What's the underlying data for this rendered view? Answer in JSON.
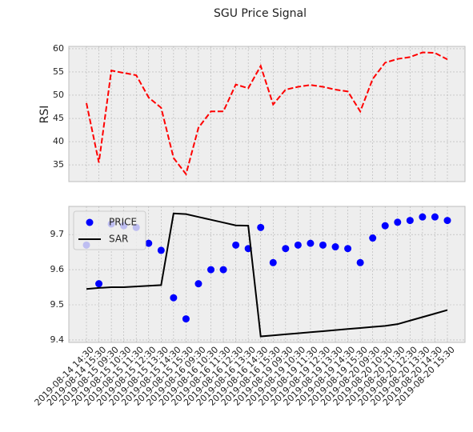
{
  "chart_data": [
    {
      "type": "line",
      "title": "SGU Price Signal",
      "ylabel": "RSI",
      "series": [
        {
          "color": "#ff0000",
          "linestyle": "dashed",
          "values": [
            48.3,
            35.5,
            55.3,
            54.8,
            54.3,
            49.5,
            47.3,
            36.5,
            33,
            43,
            46.5,
            46.5,
            52.3,
            51.5,
            56.3,
            48,
            51.2,
            51.8,
            52.2,
            51.8,
            51.2,
            50.8,
            46.5,
            53.5,
            57,
            57.8,
            58.2,
            59.2,
            59.1,
            57.7
          ]
        }
      ],
      "ylim": [
        31.4,
        60.5
      ],
      "yticks": [
        35,
        40,
        45,
        50,
        55,
        60
      ],
      "grid": true
    },
    {
      "type": "combo",
      "categories": [
        "2019-08-14 14:30",
        "2019-08-14 15:30",
        "2019-08-15 09:30",
        "2019-08-15 10:30",
        "2019-08-15 11:30",
        "2019-08-15 12:30",
        "2019-08-15 13:30",
        "2019-08-15 14:30",
        "2019-08-15 15:30",
        "2019-08-16 09:30",
        "2019-08-16 10:30",
        "2019-08-16 11:30",
        "2019-08-16 12:30",
        "2019-08-16 13:30",
        "2019-08-16 14:30",
        "2019-08-16 15:30",
        "2019-08-19 09:30",
        "2019-08-19 10:30",
        "2019-08-19 11:30",
        "2019-08-19 12:30",
        "2019-08-19 13:30",
        "2019-08-19 14:30",
        "2019-08-19 15:30",
        "2019-08-20 09:30",
        "2019-08-20 10:30",
        "2019-08-20 11:30",
        "2019-08-20 12:30",
        "2019-08-20 13:30",
        "2019-08-20 14:30",
        "2019-08-20 15:30"
      ],
      "series": [
        {
          "name": "PRICE",
          "type": "scatter",
          "color": "#0000ff",
          "values": [
            9.67,
            9.56,
            9.73,
            9.725,
            9.72,
            9.675,
            9.655,
            9.52,
            9.46,
            9.56,
            9.6,
            9.6,
            9.67,
            9.66,
            9.72,
            9.62,
            9.66,
            9.67,
            9.675,
            9.67,
            9.665,
            9.66,
            9.62,
            9.69,
            9.725,
            9.735,
            9.74,
            9.75,
            9.75,
            9.74
          ]
        },
        {
          "name": "SAR",
          "type": "line",
          "color": "#000000",
          "values": [
            9.545,
            9.548,
            9.55,
            9.55,
            9.552,
            9.554,
            9.556,
            9.76,
            9.758,
            9.75,
            9.742,
            9.734,
            9.726,
            9.725,
            9.41,
            9.413,
            9.416,
            9.419,
            9.422,
            9.425,
            9.428,
            9.431,
            9.434,
            9.437,
            9.44,
            9.445,
            9.455,
            9.465,
            9.475,
            9.485
          ]
        }
      ],
      "ylim": [
        9.393,
        9.78
      ],
      "yticks": [
        9.4,
        9.5,
        9.6,
        9.7
      ],
      "grid": true,
      "legend": "upper left"
    }
  ]
}
